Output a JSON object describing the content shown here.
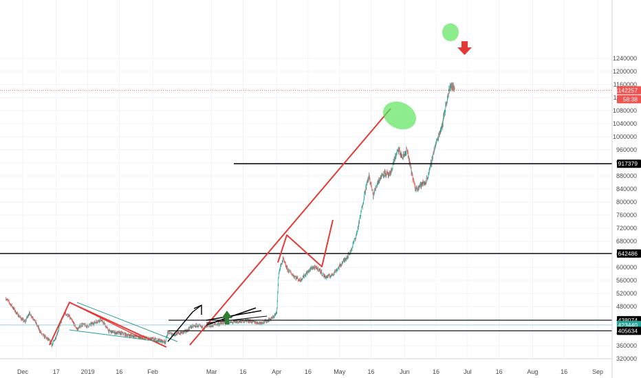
{
  "chart_data": {
    "type": "candlestick",
    "title": "",
    "xlabel": "",
    "ylabel": "",
    "ylim": [
      315000,
      1250000
    ],
    "y_ticks": [
      "320000",
      "360000",
      "400000",
      "440000",
      "480000",
      "520000",
      "560000",
      "600000",
      "640000",
      "680000",
      "720000",
      "760000",
      "800000",
      "840000",
      "880000",
      "920000",
      "960000",
      "1000000",
      "1040000",
      "1080000",
      "1120000",
      "1160000",
      "1200000",
      "1240000"
    ],
    "x_ticks": [
      "Dec",
      "17",
      "2019",
      "16",
      "Feb",
      "Mar",
      "16",
      "Apr",
      "16",
      "May",
      "16",
      "Jun",
      "16",
      "Jul",
      "16",
      "Aug",
      "16",
      "Sep"
    ],
    "price_tags": {
      "last": "1142257",
      "countdown": "58:38",
      "level_high": "917379",
      "level_mid": "642486",
      "level_low1": "438074",
      "level_low2": "423440",
      "level_low3": "405634"
    },
    "horizontal_levels": [
      917379,
      642486,
      438074,
      423440,
      405634
    ],
    "last_price": 1142257,
    "close_series": [
      {
        "date": "2018-11-23",
        "close": 505000
      },
      {
        "date": "2018-11-26",
        "close": 480000
      },
      {
        "date": "2018-11-28",
        "close": 460000
      },
      {
        "date": "2018-11-30",
        "close": 445000
      },
      {
        "date": "2018-12-02",
        "close": 432000
      },
      {
        "date": "2018-12-04",
        "close": 460000
      },
      {
        "date": "2018-12-06",
        "close": 445000
      },
      {
        "date": "2018-12-08",
        "close": 420000
      },
      {
        "date": "2018-12-10",
        "close": 395000
      },
      {
        "date": "2018-12-12",
        "close": 385000
      },
      {
        "date": "2018-12-14",
        "close": 372000
      },
      {
        "date": "2018-12-15",
        "close": 362000
      },
      {
        "date": "2018-12-17",
        "close": 390000
      },
      {
        "date": "2018-12-19",
        "close": 430000
      },
      {
        "date": "2018-12-21",
        "close": 460000
      },
      {
        "date": "2018-12-23",
        "close": 450000
      },
      {
        "date": "2018-12-25",
        "close": 430000
      },
      {
        "date": "2018-12-27",
        "close": 410000
      },
      {
        "date": "2018-12-29",
        "close": 425000
      },
      {
        "date": "2019-01-01",
        "close": 420000
      },
      {
        "date": "2019-01-04",
        "close": 430000
      },
      {
        "date": "2019-01-07",
        "close": 440000
      },
      {
        "date": "2019-01-09",
        "close": 425000
      },
      {
        "date": "2019-01-11",
        "close": 405000
      },
      {
        "date": "2019-01-14",
        "close": 400000
      },
      {
        "date": "2019-01-17",
        "close": 398000
      },
      {
        "date": "2019-01-20",
        "close": 392000
      },
      {
        "date": "2019-01-23",
        "close": 390000
      },
      {
        "date": "2019-01-26",
        "close": 387000
      },
      {
        "date": "2019-01-29",
        "close": 382000
      },
      {
        "date": "2019-02-01",
        "close": 380000
      },
      {
        "date": "2019-02-04",
        "close": 376000
      },
      {
        "date": "2019-02-07",
        "close": 372000
      },
      {
        "date": "2019-02-08",
        "close": 400000
      },
      {
        "date": "2019-02-11",
        "close": 395000
      },
      {
        "date": "2019-02-14",
        "close": 398000
      },
      {
        "date": "2019-02-17",
        "close": 404000
      },
      {
        "date": "2019-02-19",
        "close": 418000
      },
      {
        "date": "2019-02-22",
        "close": 422000
      },
      {
        "date": "2019-02-25",
        "close": 415000
      },
      {
        "date": "2019-02-28",
        "close": 420000
      },
      {
        "date": "2019-03-03",
        "close": 425000
      },
      {
        "date": "2019-03-06",
        "close": 428000
      },
      {
        "date": "2019-03-09",
        "close": 430000
      },
      {
        "date": "2019-03-12",
        "close": 432000
      },
      {
        "date": "2019-03-15",
        "close": 434000
      },
      {
        "date": "2019-03-18",
        "close": 438000
      },
      {
        "date": "2019-03-21",
        "close": 432000
      },
      {
        "date": "2019-03-24",
        "close": 430000
      },
      {
        "date": "2019-03-27",
        "close": 435000
      },
      {
        "date": "2019-03-30",
        "close": 445000
      },
      {
        "date": "2019-04-01",
        "close": 460000
      },
      {
        "date": "2019-04-02",
        "close": 585000
      },
      {
        "date": "2019-04-04",
        "close": 625000
      },
      {
        "date": "2019-04-06",
        "close": 595000
      },
      {
        "date": "2019-04-09",
        "close": 575000
      },
      {
        "date": "2019-04-12",
        "close": 560000
      },
      {
        "date": "2019-04-15",
        "close": 580000
      },
      {
        "date": "2019-04-18",
        "close": 600000
      },
      {
        "date": "2019-04-21",
        "close": 595000
      },
      {
        "date": "2019-04-24",
        "close": 570000
      },
      {
        "date": "2019-04-27",
        "close": 575000
      },
      {
        "date": "2019-04-30",
        "close": 595000
      },
      {
        "date": "2019-05-03",
        "close": 620000
      },
      {
        "date": "2019-05-06",
        "close": 645000
      },
      {
        "date": "2019-05-09",
        "close": 700000
      },
      {
        "date": "2019-05-11",
        "close": 760000
      },
      {
        "date": "2019-05-13",
        "close": 830000
      },
      {
        "date": "2019-05-15",
        "close": 880000
      },
      {
        "date": "2019-05-17",
        "close": 820000
      },
      {
        "date": "2019-05-19",
        "close": 860000
      },
      {
        "date": "2019-05-22",
        "close": 890000
      },
      {
        "date": "2019-05-25",
        "close": 880000
      },
      {
        "date": "2019-05-27",
        "close": 930000
      },
      {
        "date": "2019-05-29",
        "close": 960000
      },
      {
        "date": "2019-05-31",
        "close": 935000
      },
      {
        "date": "2019-06-02",
        "close": 960000
      },
      {
        "date": "2019-06-04",
        "close": 900000
      },
      {
        "date": "2019-06-06",
        "close": 840000
      },
      {
        "date": "2019-06-08",
        "close": 850000
      },
      {
        "date": "2019-06-11",
        "close": 860000
      },
      {
        "date": "2019-06-13",
        "close": 900000
      },
      {
        "date": "2019-06-15",
        "close": 960000
      },
      {
        "date": "2019-06-17",
        "close": 1000000
      },
      {
        "date": "2019-06-19",
        "close": 1040000
      },
      {
        "date": "2019-06-21",
        "close": 1110000
      },
      {
        "date": "2019-06-23",
        "close": 1160000
      },
      {
        "date": "2019-06-25",
        "close": 1142257
      }
    ],
    "annotations": {
      "arrows": [
        "up",
        "down"
      ]
    }
  },
  "colors": {
    "up": "#26a69a",
    "down": "#ef5350",
    "trend": "#e53935",
    "level": "#000000",
    "highlight": "#5ce65c",
    "arrow_up": "#2e7d32",
    "arrow_down": "#e53935",
    "last_tag_bg": "#ef5350",
    "mid_tag_bg": "#26a69a"
  }
}
